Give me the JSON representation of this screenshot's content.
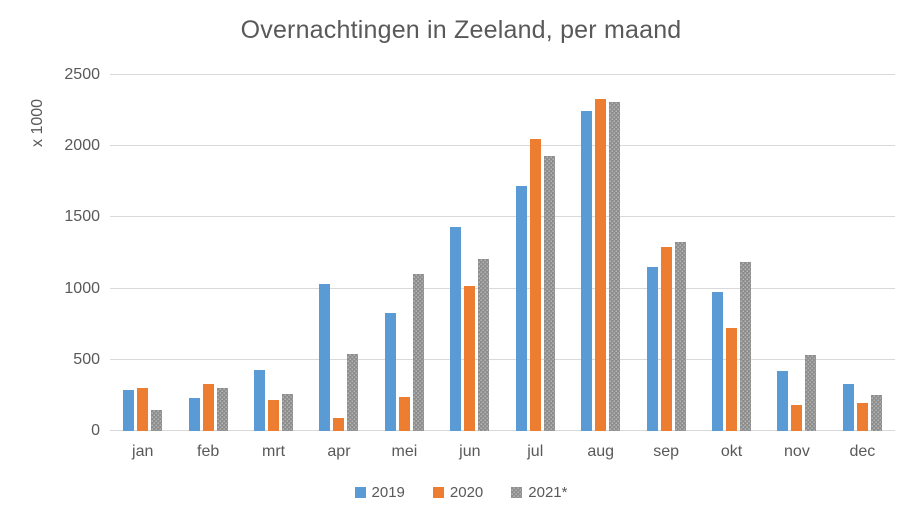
{
  "chart_data": {
    "type": "bar",
    "title": "Overnachtingen in Zeeland, per maand",
    "ylabel": "x 1000",
    "categories": [
      "jan",
      "feb",
      "mrt",
      "apr",
      "mei",
      "jun",
      "jul",
      "aug",
      "sep",
      "okt",
      "nov",
      "dec"
    ],
    "series": [
      {
        "name": "2019",
        "color": "#5B9BD5",
        "pattern": "solid",
        "values": [
          285,
          230,
          425,
          1030,
          830,
          1435,
          1720,
          2245,
          1150,
          975,
          420,
          330
        ]
      },
      {
        "name": "2020",
        "color": "#ED7D31",
        "pattern": "solid",
        "values": [
          305,
          330,
          220,
          90,
          240,
          1020,
          2050,
          2335,
          1295,
          720,
          180,
          195
        ]
      },
      {
        "name": "2021*",
        "color": "#A6A6A6",
        "pattern": "dotted",
        "values": [
          150,
          300,
          260,
          540,
          1100,
          1210,
          1930,
          2310,
          1325,
          1185,
          535,
          250
        ]
      }
    ],
    "yticks": [
      0,
      500,
      1000,
      1500,
      2000,
      2500
    ],
    "ylim": [
      0,
      2500
    ],
    "grid": true,
    "legend_position": "bottom",
    "colors": {
      "gridline": "#D9D9D9",
      "text": "#595959"
    }
  }
}
